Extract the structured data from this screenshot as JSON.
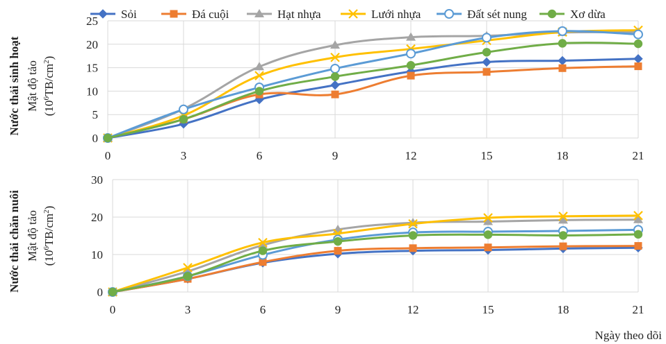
{
  "x_axis_label": "Ngày theo dõi",
  "legend": {
    "items": [
      {
        "name": "Sỏi",
        "color": "#4472C4",
        "marker": "diamond"
      },
      {
        "name": "Đá cuội",
        "color": "#ED7D31",
        "marker": "square"
      },
      {
        "name": "Hạt nhựa",
        "color": "#A5A5A5",
        "marker": "triangle"
      },
      {
        "name": "Lưới nhựa",
        "color": "#FFC000",
        "marker": "cross"
      },
      {
        "name": "Đất sét nung",
        "color": "#5B9BD5",
        "marker": "circle-open"
      },
      {
        "name": "Xơ dừa",
        "color": "#70AD47",
        "marker": "circle"
      }
    ]
  },
  "chart_data": [
    {
      "type": "line",
      "row_label": "Nước thải sinh hoạt",
      "ylabel": "Mật độ tảo",
      "yunit_prefix": "(10",
      "yunit_exp": "6",
      "yunit_mid": "TB/cm",
      "yunit_exp2": "2",
      "yunit_suffix": ")",
      "x": [
        0,
        3,
        6,
        9,
        12,
        15,
        18,
        21
      ],
      "ylim": [
        0,
        25
      ],
      "yticks": [
        0,
        5,
        10,
        15,
        20,
        25
      ],
      "grid": true,
      "legend_position": "top",
      "series": [
        {
          "name": "Sỏi",
          "values": [
            0,
            3.0,
            8.2,
            11.3,
            14.2,
            16.2,
            16.5,
            16.9
          ]
        },
        {
          "name": "Đá cuội",
          "values": [
            0,
            4.0,
            9.3,
            9.3,
            13.3,
            14.1,
            14.9,
            15.3
          ]
        },
        {
          "name": "Hạt nhựa",
          "values": [
            0,
            6.2,
            15.2,
            19.8,
            21.5,
            21.8,
            22.5,
            22.6
          ]
        },
        {
          "name": "Lưới nhựa",
          "values": [
            0,
            4.8,
            13.3,
            17.2,
            19.0,
            20.8,
            22.6,
            23.0
          ]
        },
        {
          "name": "Đất sét nung",
          "values": [
            0,
            6.1,
            10.8,
            14.8,
            18.0,
            21.4,
            22.8,
            22.1
          ]
        },
        {
          "name": "Xơ dừa",
          "values": [
            0,
            4.0,
            10.0,
            13.1,
            15.5,
            18.3,
            20.2,
            20.1
          ]
        }
      ]
    },
    {
      "type": "line",
      "row_label": "Nước thải chăn nuôi",
      "ylabel": "Mật độ tảo",
      "yunit_prefix": "(10",
      "yunit_exp": "6",
      "yunit_mid": "TB/cm",
      "yunit_exp2": "2",
      "yunit_suffix": ")",
      "x": [
        0,
        3,
        6,
        9,
        12,
        15,
        18,
        21
      ],
      "ylim": [
        0,
        30
      ],
      "yticks": [
        0,
        10,
        20,
        30
      ],
      "grid": true,
      "series": [
        {
          "name": "Sỏi",
          "values": [
            0,
            3.5,
            7.8,
            10.2,
            11.0,
            11.2,
            11.6,
            11.8
          ]
        },
        {
          "name": "Đá cuội",
          "values": [
            0,
            3.5,
            8.0,
            11.0,
            11.7,
            11.9,
            12.2,
            12.3
          ]
        },
        {
          "name": "Hạt nhựa",
          "values": [
            0,
            5.5,
            12.5,
            16.7,
            18.5,
            18.8,
            19.2,
            19.3
          ]
        },
        {
          "name": "Lưới nhựa",
          "values": [
            0,
            6.5,
            13.2,
            15.6,
            18.2,
            19.8,
            20.2,
            20.4
          ]
        },
        {
          "name": "Đất sét nung",
          "values": [
            0,
            4.2,
            9.9,
            14.0,
            15.9,
            16.1,
            16.3,
            16.6
          ]
        },
        {
          "name": "Xơ dừa",
          "values": [
            0,
            4.2,
            11.0,
            13.5,
            15.1,
            15.3,
            15.1,
            15.4
          ]
        }
      ]
    }
  ]
}
